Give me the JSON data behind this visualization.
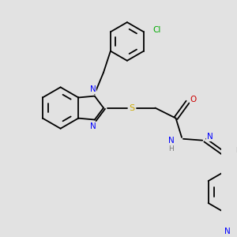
{
  "background_color": "#e2e2e2",
  "bond_color": "#000000",
  "lw": 1.3,
  "atom_colors": {
    "N": "#0000ff",
    "S": "#ccaa00",
    "O": "#cc0000",
    "Cl": "#00aa00",
    "H": "#777777"
  },
  "fontsize": 7.0
}
